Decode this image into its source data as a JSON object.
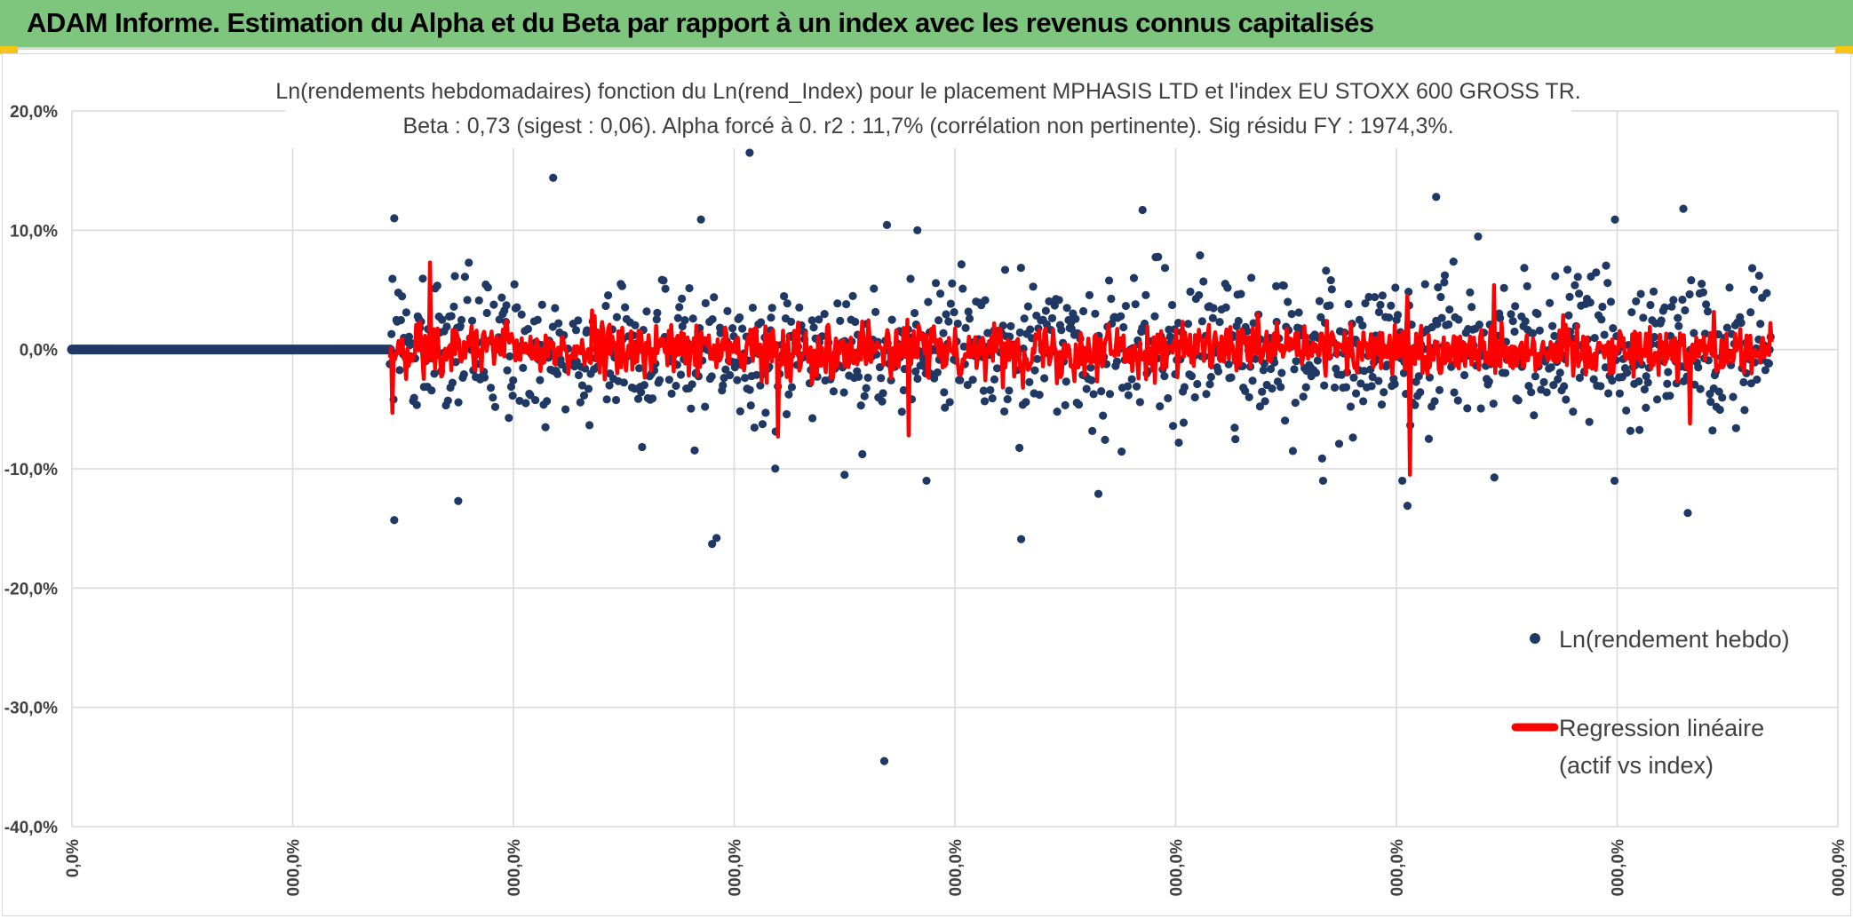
{
  "banner": {
    "title": "ADAM Informe. Estimation du Alpha et du Beta par rapport à un index avec les revenus connus capitalisés"
  },
  "colors": {
    "banner_bg": "#7ec67e",
    "scatter": "#203864",
    "regression": "#ff0000",
    "grid": "#d9d9d9",
    "text": "#404040"
  },
  "chart_data": {
    "type": "scatter",
    "title_line1": "Ln(rendements hebdomadaires) fonction du Ln(rend_Index) pour le placement MPHASIS LTD et l'index EU STOXX 600 GROSS TR.",
    "title_line2": "Beta : 0,73 (sigest : 0,06). Alpha forcé à 0. r2 : 11,7% (corrélation non pertinente). Sig résidu FY : 1974,3%.",
    "y_ticks": [
      "20,0%",
      "10,0%",
      "0,0%",
      "-10,0%",
      "-20,0%",
      "-30,0%",
      "-40,0%"
    ],
    "ylim": [
      -40,
      20
    ],
    "x_ticks": [
      "0,0%",
      "000,0%",
      "000,0%",
      "000,0%",
      "000,0%",
      "000,0%",
      "000,0%",
      "000,0%",
      "000,0%"
    ],
    "series": [
      {
        "name": "Ln(rendement hebdo)",
        "type": "scatter",
        "flat_segment": {
          "x_start": 0,
          "x_end": 1.44,
          "y": 0
        },
        "dense_range": {
          "x_start": 1.44,
          "x_end": 7.7,
          "typical_spread_pct": 4
        },
        "notable_points": [
          {
            "x": 1.46,
            "y": 11.0
          },
          {
            "x": 1.46,
            "y": -14.3
          },
          {
            "x": 1.75,
            "y": -12.7
          },
          {
            "x": 2.18,
            "y": 14.4
          },
          {
            "x": 2.9,
            "y": -16.3
          },
          {
            "x": 2.92,
            "y": -15.8
          },
          {
            "x": 3.07,
            "y": 16.5
          },
          {
            "x": 3.68,
            "y": -34.5
          },
          {
            "x": 4.3,
            "y": -15.9
          },
          {
            "x": 4.65,
            "y": -12.1
          },
          {
            "x": 4.85,
            "y": 11.7
          },
          {
            "x": 6.05,
            "y": -13.1
          },
          {
            "x": 6.18,
            "y": 12.8
          },
          {
            "x": 7.3,
            "y": 11.8
          },
          {
            "x": 7.32,
            "y": -13.7
          },
          {
            "x": 6.99,
            "y": 10.9
          },
          {
            "x": 3.5,
            "y": -10.5
          },
          {
            "x": 3.83,
            "y": 10.0
          }
        ]
      },
      {
        "name": "Regression linéaire (actif vs index)",
        "type": "line",
        "x_start": 1.44,
        "x_end": 7.7,
        "typical_amplitude_pct": 2,
        "spikes": [
          {
            "x": 1.62,
            "y": 7.3
          },
          {
            "x": 1.45,
            "y": -5.3
          },
          {
            "x": 3.2,
            "y": -7.3
          },
          {
            "x": 3.79,
            "y": -7.2
          },
          {
            "x": 6.06,
            "y": -10.5
          },
          {
            "x": 6.05,
            "y": 4.5
          },
          {
            "x": 6.44,
            "y": 5.4
          },
          {
            "x": 7.33,
            "y": -6.2
          }
        ]
      }
    ],
    "legend": {
      "placement": "right",
      "scatter_label": "Ln(rendement hebdo)",
      "line_label_1": "Regression linéaire",
      "line_label_2": "(actif vs index)"
    }
  }
}
